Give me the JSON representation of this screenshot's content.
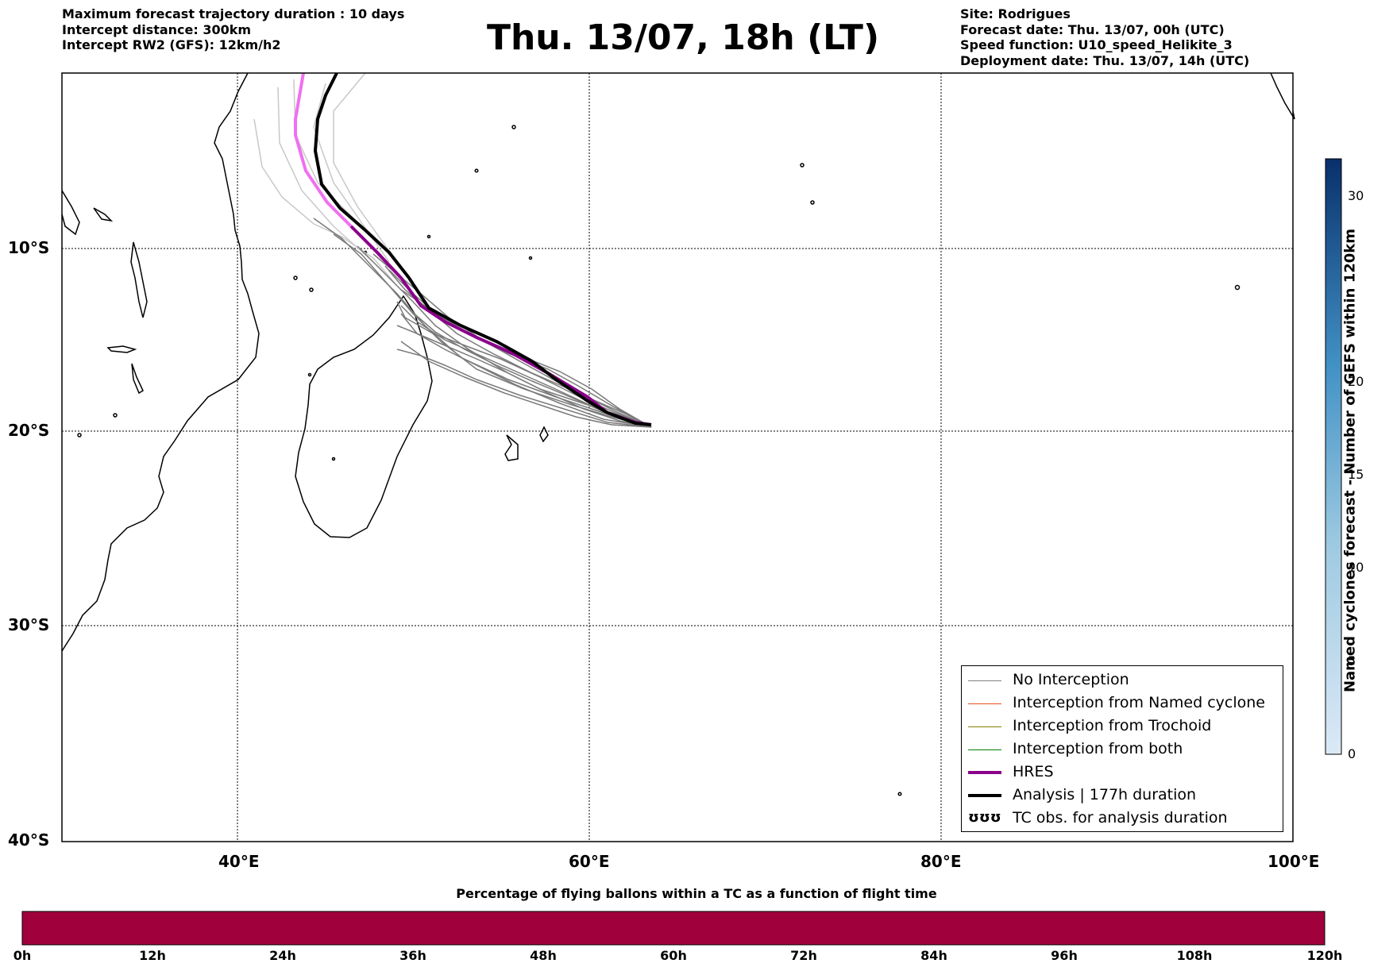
{
  "header": {
    "left_lines": [
      "Maximum forecast trajectory duration : 10 days",
      "Intercept distance: 300km",
      "Intercept RW2 (GFS):  12km/h2"
    ],
    "right_lines": [
      "Site: Rodrigues",
      "Forecast date: Thu. 13/07, 00h (UTC)",
      "Speed function: U10_speed_Helikite_3",
      "Deployment date: Thu. 13/07, 14h (UTC)"
    ],
    "title": "Thu. 13/07, 18h (LT)"
  },
  "map": {
    "lon_range": [
      30,
      100
    ],
    "lat_range": [
      -40,
      0
    ],
    "lon_ticks": [
      "40°E",
      "60°E",
      "80°E",
      "100°E"
    ],
    "lat_ticks": [
      "10°S",
      "20°S",
      "30°S",
      "40°S"
    ],
    "grid": true
  },
  "legend": {
    "items": [
      {
        "label": "No Interception",
        "color": "#808080"
      },
      {
        "label": "Interception from Named cyclone",
        "color": "#e8501e"
      },
      {
        "label": "Interception from Trochoid",
        "color": "#808000"
      },
      {
        "label": "Interception from both",
        "color": "#008000"
      },
      {
        "label": "HRES",
        "color": "#8b008b"
      },
      {
        "label": "Analysis | 177h duration",
        "color": "#000000"
      },
      {
        "label": "TC obs. for analysis duration",
        "symbol": "ʊʊʊ"
      }
    ]
  },
  "right_colorbar": {
    "title": "Named cyclones forecast - Number of GEFS within 120km",
    "ticks": [
      "0",
      "5",
      "10",
      "15",
      "20",
      "30"
    ],
    "color_low": "#dbe9f6",
    "color_high": "#08306b"
  },
  "bottom_colorbar": {
    "title": "Percentage of flying ballons within a TC as a function of flight time",
    "ticks": [
      "0h",
      "12h",
      "24h",
      "36h",
      "48h",
      "60h",
      "72h",
      "84h",
      "96h",
      "108h",
      "120h"
    ],
    "color": "#a0003c"
  },
  "colors": {
    "hres_early": "#f070f0",
    "hres": "#8b008b",
    "analysis": "#000000",
    "ensemble": "#7a7a7a",
    "ensemble_light": "#c8c8c8"
  }
}
